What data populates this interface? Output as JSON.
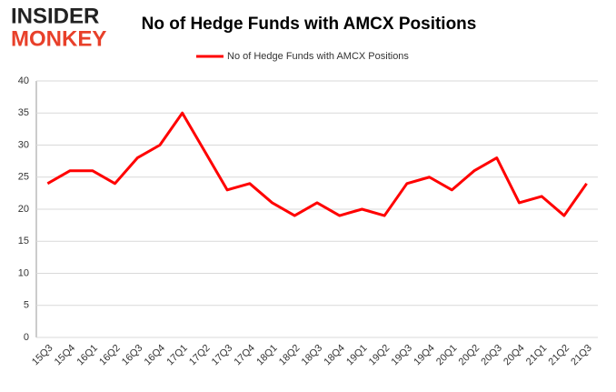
{
  "logo": {
    "line1": "INSIDER",
    "line2": "MONKEY"
  },
  "chart_data": {
    "type": "line",
    "title": "No of Hedge Funds with AMCX Positions",
    "categories": [
      "15Q3",
      "15Q4",
      "16Q1",
      "16Q2",
      "16Q3",
      "16Q4",
      "17Q1",
      "17Q2",
      "17Q3",
      "17Q4",
      "18Q1",
      "18Q2",
      "18Q3",
      "18Q4",
      "19Q1",
      "19Q2",
      "19Q3",
      "19Q4",
      "20Q1",
      "20Q2",
      "20Q3",
      "20Q4",
      "21Q1",
      "21Q2",
      "21Q3"
    ],
    "series": [
      {
        "name": "No of Hedge Funds with AMCX Positions",
        "color": "#ff0000",
        "values": [
          24,
          26,
          26,
          24,
          28,
          30,
          35,
          29,
          23,
          24,
          21,
          19,
          21,
          19,
          20,
          19,
          24,
          25,
          23,
          26,
          28,
          21,
          22,
          19,
          24
        ]
      }
    ],
    "ylim": [
      0,
      40
    ],
    "yticks": [
      0,
      5,
      10,
      15,
      20,
      25,
      30,
      35,
      40
    ],
    "grid": true,
    "legend": "top"
  }
}
